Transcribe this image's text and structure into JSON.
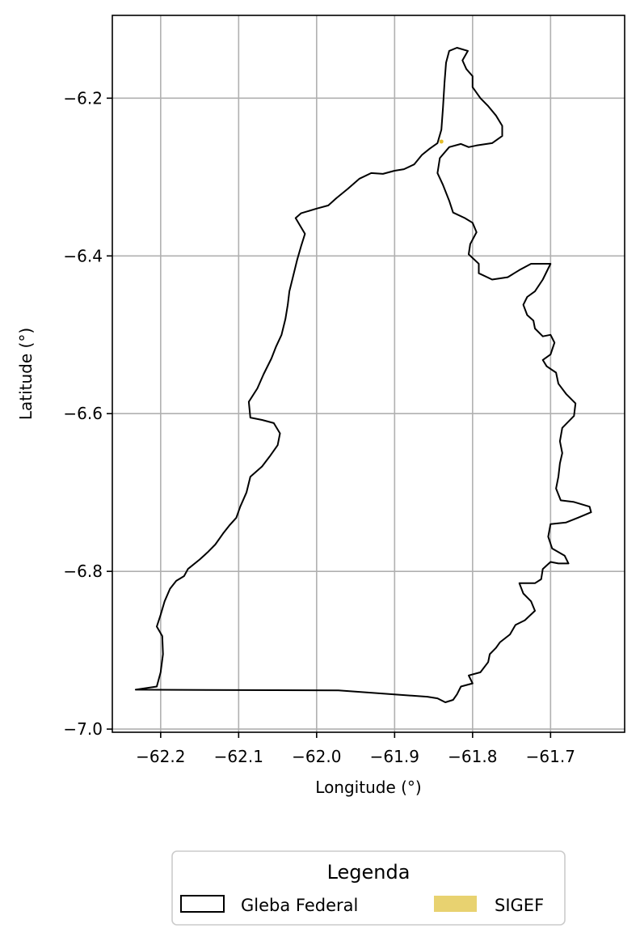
{
  "chart_data": {
    "type": "map",
    "xlabel": "Longitude (°)",
    "ylabel": "Latitude (°)",
    "xlim": [
      -62.262,
      -61.605
    ],
    "ylim": [
      -7.004,
      -6.095
    ],
    "xticks": [
      -62.2,
      -62.1,
      -62.0,
      -61.9,
      -61.8,
      -61.7
    ],
    "xtick_labels": [
      "−62.2",
      "−62.1",
      "−62.0",
      "−61.9",
      "−61.8",
      "−61.7"
    ],
    "yticks": [
      -6.2,
      -6.4,
      -6.6,
      -6.8,
      -7.0
    ],
    "ytick_labels": [
      "−6.2",
      "−6.4",
      "−6.6",
      "−6.8",
      "−7.0"
    ],
    "grid": true,
    "legend": {
      "title": "Legenda",
      "placement": "below",
      "entries": [
        {
          "label": "Gleba Federal",
          "style": "outline",
          "edge_color": "#000000",
          "fill": "none"
        },
        {
          "label": "SIGEF",
          "style": "fill",
          "fill": "#e8d270"
        }
      ]
    },
    "layers": [
      {
        "name": "Gleba Federal",
        "type": "polygon",
        "edge_color": "#000000",
        "coordinates": [
          [
            -62.232,
            -6.95
          ],
          [
            -62.205,
            -6.946
          ],
          [
            -62.2,
            -6.928
          ],
          [
            -62.197,
            -6.905
          ],
          [
            -62.198,
            -6.882
          ],
          [
            -62.205,
            -6.87
          ],
          [
            -62.2,
            -6.855
          ],
          [
            -62.195,
            -6.838
          ],
          [
            -62.188,
            -6.822
          ],
          [
            -62.18,
            -6.812
          ],
          [
            -62.17,
            -6.806
          ],
          [
            -62.165,
            -6.797
          ],
          [
            -62.15,
            -6.785
          ],
          [
            -62.14,
            -6.776
          ],
          [
            -62.13,
            -6.766
          ],
          [
            -62.12,
            -6.752
          ],
          [
            -62.112,
            -6.742
          ],
          [
            -62.103,
            -6.732
          ],
          [
            -62.098,
            -6.718
          ],
          [
            -62.09,
            -6.7
          ],
          [
            -62.085,
            -6.68
          ],
          [
            -62.07,
            -6.667
          ],
          [
            -62.06,
            -6.654
          ],
          [
            -62.05,
            -6.64
          ],
          [
            -62.047,
            -6.625
          ],
          [
            -62.055,
            -6.612
          ],
          [
            -62.07,
            -6.608
          ],
          [
            -62.085,
            -6.605
          ],
          [
            -62.087,
            -6.585
          ],
          [
            -62.076,
            -6.568
          ],
          [
            -62.068,
            -6.55
          ],
          [
            -62.058,
            -6.53
          ],
          [
            -62.052,
            -6.515
          ],
          [
            -62.045,
            -6.5
          ],
          [
            -62.04,
            -6.48
          ],
          [
            -62.037,
            -6.462
          ],
          [
            -62.035,
            -6.445
          ],
          [
            -62.03,
            -6.425
          ],
          [
            -62.025,
            -6.405
          ],
          [
            -62.02,
            -6.388
          ],
          [
            -62.015,
            -6.372
          ],
          [
            -62.027,
            -6.352
          ],
          [
            -62.02,
            -6.346
          ],
          [
            -62.0,
            -6.34
          ],
          [
            -61.985,
            -6.336
          ],
          [
            -61.975,
            -6.327
          ],
          [
            -61.96,
            -6.315
          ],
          [
            -61.945,
            -6.302
          ],
          [
            -61.93,
            -6.295
          ],
          [
            -61.915,
            -6.296
          ],
          [
            -61.9,
            -6.292
          ],
          [
            -61.888,
            -6.29
          ],
          [
            -61.875,
            -6.284
          ],
          [
            -61.865,
            -6.272
          ],
          [
            -61.855,
            -6.264
          ],
          [
            -61.845,
            -6.257
          ],
          [
            -61.84,
            -6.24
          ],
          [
            -61.838,
            -6.212
          ],
          [
            -61.836,
            -6.18
          ],
          [
            -61.834,
            -6.155
          ],
          [
            -61.83,
            -6.14
          ],
          [
            -61.82,
            -6.136
          ],
          [
            -61.806,
            -6.14
          ],
          [
            -61.813,
            -6.152
          ],
          [
            -61.808,
            -6.163
          ],
          [
            -61.8,
            -6.172
          ],
          [
            -61.8,
            -6.186
          ],
          [
            -61.79,
            -6.2
          ],
          [
            -61.78,
            -6.21
          ],
          [
            -61.77,
            -6.222
          ],
          [
            -61.762,
            -6.235
          ],
          [
            -61.762,
            -6.248
          ],
          [
            -61.775,
            -6.257
          ],
          [
            -61.795,
            -6.26
          ],
          [
            -61.805,
            -6.262
          ],
          [
            -61.815,
            -6.258
          ],
          [
            -61.83,
            -6.262
          ],
          [
            -61.842,
            -6.276
          ],
          [
            -61.845,
            -6.295
          ],
          [
            -61.838,
            -6.31
          ],
          [
            -61.83,
            -6.33
          ],
          [
            -61.825,
            -6.345
          ],
          [
            -61.81,
            -6.352
          ],
          [
            -61.8,
            -6.358
          ],
          [
            -61.795,
            -6.37
          ],
          [
            -61.803,
            -6.385
          ],
          [
            -61.805,
            -6.398
          ],
          [
            -61.792,
            -6.41
          ],
          [
            -61.792,
            -6.422
          ],
          [
            -61.775,
            -6.43
          ],
          [
            -61.755,
            -6.427
          ],
          [
            -61.74,
            -6.418
          ],
          [
            -61.725,
            -6.41
          ],
          [
            -61.7,
            -6.41
          ],
          [
            -61.71,
            -6.43
          ],
          [
            -61.72,
            -6.445
          ],
          [
            -61.73,
            -6.452
          ],
          [
            -61.735,
            -6.462
          ],
          [
            -61.73,
            -6.475
          ],
          [
            -61.722,
            -6.482
          ],
          [
            -61.72,
            -6.492
          ],
          [
            -61.71,
            -6.502
          ],
          [
            -61.7,
            -6.5
          ],
          [
            -61.695,
            -6.51
          ],
          [
            -61.7,
            -6.525
          ],
          [
            -61.71,
            -6.532
          ],
          [
            -61.705,
            -6.54
          ],
          [
            -61.693,
            -6.548
          ],
          [
            -61.69,
            -6.562
          ],
          [
            -61.68,
            -6.575
          ],
          [
            -61.668,
            -6.587
          ],
          [
            -61.67,
            -6.603
          ],
          [
            -61.685,
            -6.618
          ],
          [
            -61.688,
            -6.635
          ],
          [
            -61.685,
            -6.65
          ],
          [
            -61.688,
            -6.663
          ],
          [
            -61.69,
            -6.68
          ],
          [
            -61.693,
            -6.695
          ],
          [
            -61.687,
            -6.71
          ],
          [
            -61.67,
            -6.712
          ],
          [
            -61.65,
            -6.718
          ],
          [
            -61.648,
            -6.725
          ],
          [
            -61.665,
            -6.732
          ],
          [
            -61.68,
            -6.738
          ],
          [
            -61.7,
            -6.74
          ],
          [
            -61.703,
            -6.756
          ],
          [
            -61.698,
            -6.771
          ],
          [
            -61.682,
            -6.78
          ],
          [
            -61.677,
            -6.79
          ],
          [
            -61.69,
            -6.79
          ],
          [
            -61.7,
            -6.788
          ],
          [
            -61.71,
            -6.797
          ],
          [
            -61.712,
            -6.81
          ],
          [
            -61.72,
            -6.815
          ],
          [
            -61.74,
            -6.815
          ],
          [
            -61.735,
            -6.828
          ],
          [
            -61.725,
            -6.838
          ],
          [
            -61.72,
            -6.85
          ],
          [
            -61.733,
            -6.862
          ],
          [
            -61.745,
            -6.868
          ],
          [
            -61.752,
            -6.88
          ],
          [
            -61.765,
            -6.89
          ],
          [
            -61.77,
            -6.897
          ],
          [
            -61.778,
            -6.905
          ],
          [
            -61.78,
            -6.915
          ],
          [
            -61.79,
            -6.928
          ],
          [
            -61.805,
            -6.932
          ],
          [
            -61.8,
            -6.942
          ],
          [
            -61.815,
            -6.946
          ],
          [
            -61.82,
            -6.956
          ],
          [
            -61.825,
            -6.963
          ],
          [
            -61.835,
            -6.966
          ],
          [
            -61.845,
            -6.961
          ],
          [
            -61.858,
            -6.959
          ],
          [
            -61.972,
            -6.951
          ],
          [
            -62.232,
            -6.95
          ]
        ]
      },
      {
        "name": "SIGEF",
        "type": "point",
        "fill": "#e8d270",
        "coordinates": [
          [
            -61.84,
            -6.255
          ]
        ]
      }
    ]
  }
}
